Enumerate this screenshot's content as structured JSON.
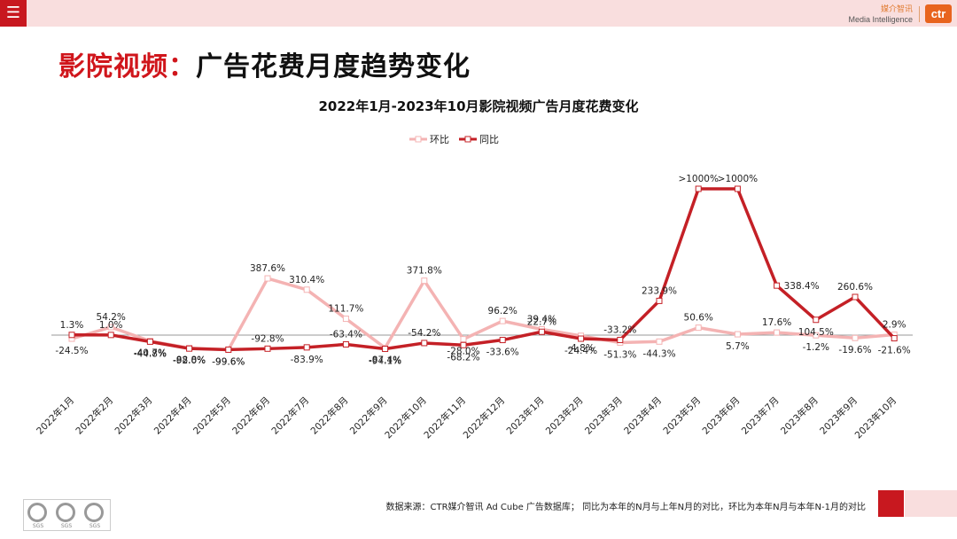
{
  "header": {
    "menu_icon": "☰",
    "brand_cn": "媒介智讯",
    "brand_en": "Media Intelligence",
    "logo_text": "ctr"
  },
  "page": {
    "title_highlight": "影院视频：",
    "title_rest": "广告花费月度趋势变化"
  },
  "colors": {
    "accent": "#c8181f",
    "header_bg": "#f9dede",
    "mom_line": "#f4b3b3",
    "yoy_line": "#c42026"
  },
  "chart_data": {
    "type": "line",
    "title": "2022年1月-2023年10月影院视频广告月度花费变化",
    "categories": [
      "2022年1月",
      "2022年2月",
      "2022年3月",
      "2022年4月",
      "2022年5月",
      "2022年6月",
      "2022年7月",
      "2022年8月",
      "2022年9月",
      "2022年10月",
      "2022年11月",
      "2022年12月",
      "2023年1月",
      "2023年2月",
      "2023年3月",
      "2023年4月",
      "2023年5月",
      "2023年6月",
      "2023年7月",
      "2023年8月",
      "2023年9月",
      "2023年10月"
    ],
    "series": [
      {
        "name": "环比",
        "values": [
          -24.5,
          54.2,
          -40.7,
          -88.8,
          -99.6,
          387.6,
          310.4,
          111.7,
          -87.4,
          371.8,
          -28.0,
          96.2,
          39.4,
          -4.8,
          -51.3,
          -44.3,
          50.6,
          5.7,
          17.6,
          -1.2,
          -19.6,
          2.9
        ],
        "labels": [
          "-24.5%",
          "54.2%",
          "-40.7%",
          "-88.8%",
          "-99.6%",
          "387.6%",
          "310.4%",
          "111.7%",
          "-87.4%",
          "371.8%",
          "-28.0%",
          "96.2%",
          "39.4%",
          "-4.8%",
          "-51.3%",
          "-44.3%",
          "50.6%",
          "5.7%",
          "17.6%",
          "-1.2%",
          "-19.6%",
          "2.9%"
        ]
      },
      {
        "name": "同比",
        "values": [
          1.3,
          1.0,
          -44.8,
          -92.0,
          -99.6,
          -92.8,
          -83.9,
          -63.4,
          -94.1,
          -54.2,
          -68.2,
          -33.6,
          22.7,
          -24.4,
          -33.2,
          233.9,
          1000,
          1000,
          338.4,
          104.5,
          260.6,
          -21.6
        ],
        "labels": [
          "1.3%",
          "1.0%",
          "-44.8%",
          "-92.0%",
          "-99.6%",
          "-92.8%",
          "-83.9%",
          "-63.4%",
          "-94.1%",
          "-54.2%",
          "-68.2%",
          "-33.6%",
          "22.7%",
          "-24.4%",
          "-33.2%",
          "233.9%",
          ">1000%",
          ">1000%",
          "338.4%",
          "104.5%",
          "260.6%",
          "-21.6%"
        ]
      }
    ],
    "ylim": [
      -150,
      1000
    ],
    "grid": false,
    "legend": "top-center"
  },
  "footer": {
    "source_note": "数据来源：CTR媒介智讯 Ad Cube 广告数据库； 同比为本年的N月与上年N月的对比，环比为本年N月与本年N-1月的对比",
    "cert_label": "SGS"
  }
}
